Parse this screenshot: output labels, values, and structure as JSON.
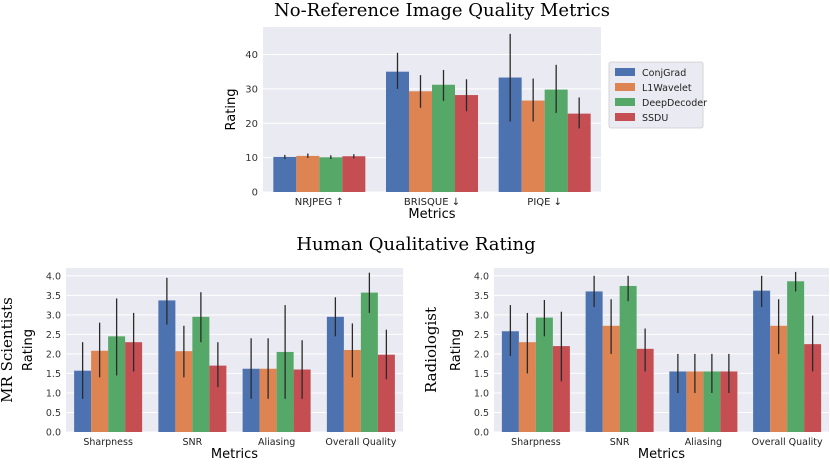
{
  "figure": {
    "title_top": "No-Reference Image Quality Metrics",
    "title_bottom": "Human Qualitative Rating"
  },
  "legend": [
    {
      "name": "ConjGrad",
      "color": "#4c72b0"
    },
    {
      "name": "L1Wavelet",
      "color": "#dd8452"
    },
    {
      "name": "DeepDecoder",
      "color": "#55a868"
    },
    {
      "name": "SSDU",
      "color": "#c44e52"
    }
  ],
  "chart_data": [
    {
      "type": "bar",
      "title": "No-Reference Image Quality Metrics",
      "xlabel": "Metrics",
      "ylabel": "Rating",
      "categories": [
        "NRJPEG ↑",
        "BRISQUE ↓",
        "PIQE ↓"
      ],
      "ylim": [
        0,
        48
      ],
      "yticks": [
        0,
        10,
        20,
        30,
        40
      ],
      "grid": true,
      "legend_position": "right",
      "series": [
        {
          "name": "ConjGrad",
          "values": [
            10.2,
            35.0,
            33.3
          ],
          "err_low": [
            9.6,
            30.0,
            20.5
          ],
          "err_high": [
            10.8,
            40.5,
            46.0
          ]
        },
        {
          "name": "L1Wavelet",
          "values": [
            10.5,
            29.3,
            26.6
          ],
          "err_low": [
            9.9,
            24.5,
            20.5
          ],
          "err_high": [
            11.2,
            34.0,
            33.0
          ]
        },
        {
          "name": "DeepDecoder",
          "values": [
            10.1,
            31.2,
            29.8
          ],
          "err_low": [
            9.6,
            26.5,
            23.0
          ],
          "err_high": [
            10.7,
            35.5,
            37.0
          ]
        },
        {
          "name": "SSDU",
          "values": [
            10.4,
            28.2,
            22.8
          ],
          "err_low": [
            9.8,
            23.5,
            18.5
          ],
          "err_high": [
            11.0,
            32.8,
            27.5
          ]
        }
      ]
    },
    {
      "type": "bar",
      "xlabel": "Metrics",
      "ylabel": "Rating",
      "side_label": "MR Scientists",
      "categories": [
        "Sharpness",
        "SNR",
        "Aliasing",
        "Overall Quality"
      ],
      "ylim": [
        0,
        4.2
      ],
      "yticks": [
        0.0,
        0.5,
        1.0,
        1.5,
        2.0,
        2.5,
        3.0,
        3.5,
        4.0
      ],
      "grid": true,
      "series": [
        {
          "name": "ConjGrad",
          "values": [
            1.57,
            3.37,
            1.62,
            2.95
          ],
          "err_low": [
            0.85,
            2.75,
            0.85,
            2.45
          ],
          "err_high": [
            2.3,
            3.95,
            2.4,
            3.45
          ]
        },
        {
          "name": "L1Wavelet",
          "values": [
            2.08,
            2.07,
            1.62,
            2.1
          ],
          "err_low": [
            1.4,
            1.4,
            0.85,
            1.4
          ],
          "err_high": [
            2.8,
            2.72,
            2.4,
            2.78
          ]
        },
        {
          "name": "DeepDecoder",
          "values": [
            2.45,
            2.95,
            2.05,
            3.57
          ],
          "err_low": [
            1.45,
            2.3,
            0.85,
            3.05
          ],
          "err_high": [
            3.42,
            3.58,
            3.25,
            4.08
          ]
        },
        {
          "name": "SSDU",
          "values": [
            2.3,
            1.7,
            1.6,
            1.98
          ],
          "err_low": [
            1.55,
            1.15,
            0.85,
            1.35
          ],
          "err_high": [
            3.05,
            2.3,
            2.35,
            2.62
          ]
        }
      ]
    },
    {
      "type": "bar",
      "xlabel": "Metrics",
      "ylabel": "Rating",
      "side_label": "Radiologist",
      "categories": [
        "Sharpness",
        "SNR",
        "Aliasing",
        "Overall Quality"
      ],
      "ylim": [
        0,
        4.2
      ],
      "yticks": [
        0.0,
        0.5,
        1.0,
        1.5,
        2.0,
        2.5,
        3.0,
        3.5,
        4.0
      ],
      "grid": true,
      "series": [
        {
          "name": "ConjGrad",
          "values": [
            2.58,
            3.6,
            1.55,
            3.62
          ],
          "err_low": [
            1.95,
            3.2,
            1.0,
            3.2
          ],
          "err_high": [
            3.25,
            4.0,
            2.0,
            4.0
          ]
        },
        {
          "name": "L1Wavelet",
          "values": [
            2.3,
            2.72,
            1.55,
            2.72
          ],
          "err_low": [
            1.5,
            2.0,
            1.0,
            2.0
          ],
          "err_high": [
            3.05,
            3.4,
            2.0,
            3.4
          ]
        },
        {
          "name": "DeepDecoder",
          "values": [
            2.93,
            3.74,
            1.55,
            3.86
          ],
          "err_low": [
            2.45,
            3.35,
            1.0,
            3.6
          ],
          "err_high": [
            3.38,
            4.0,
            2.0,
            4.1
          ]
        },
        {
          "name": "SSDU",
          "values": [
            2.2,
            2.13,
            1.55,
            2.25
          ],
          "err_low": [
            1.3,
            1.55,
            1.0,
            1.55
          ],
          "err_high": [
            3.08,
            2.65,
            2.0,
            2.98
          ]
        }
      ]
    }
  ]
}
